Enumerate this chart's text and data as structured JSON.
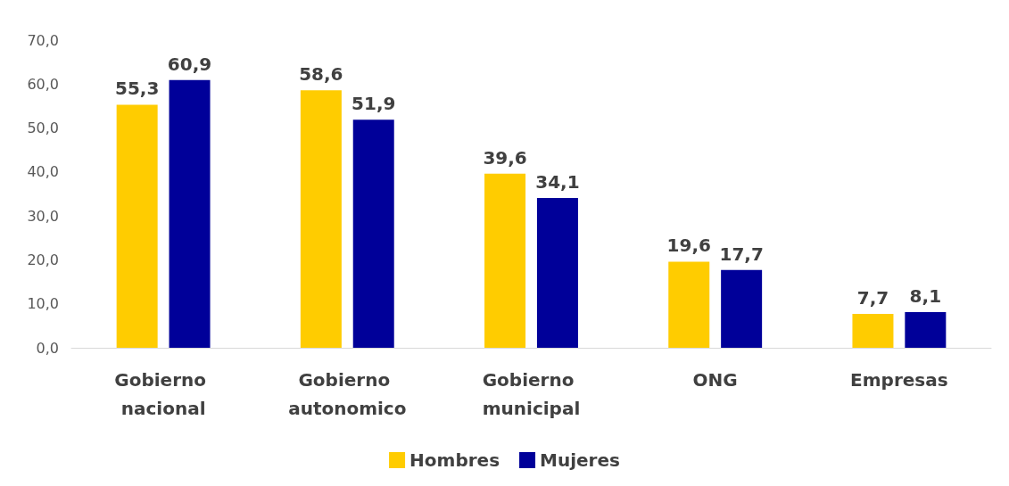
{
  "chart_data": {
    "type": "bar",
    "categories": [
      "Gobierno nacional",
      "Gobierno autonomico",
      "Gobierno municipal",
      "ONG",
      "Empresas"
    ],
    "series": [
      {
        "name": "Hombres",
        "color": "#ffcc00",
        "values": [
          55.3,
          58.6,
          39.6,
          19.6,
          7.7
        ],
        "value_labels": [
          "55,3",
          "58,6",
          "39,6",
          "19,6",
          "7,7"
        ]
      },
      {
        "name": "Mujeres",
        "color": "#000099",
        "values": [
          60.9,
          51.9,
          34.1,
          17.7,
          8.1
        ],
        "value_labels": [
          "60,9",
          "51,9",
          "34,1",
          "17,7",
          "8,1"
        ]
      }
    ],
    "ylim": [
      0,
      70
    ],
    "yticks": [
      {
        "value": 0,
        "label": "0,0"
      },
      {
        "value": 10,
        "label": "10,0"
      },
      {
        "value": 20,
        "label": "20,0"
      },
      {
        "value": 30,
        "label": "30,0"
      },
      {
        "value": 40,
        "label": "40,0"
      },
      {
        "value": 50,
        "label": "50,0"
      },
      {
        "value": 60,
        "label": "60,0"
      },
      {
        "value": 70,
        "label": "70,0"
      }
    ],
    "grid": false,
    "legend": "bottom"
  }
}
